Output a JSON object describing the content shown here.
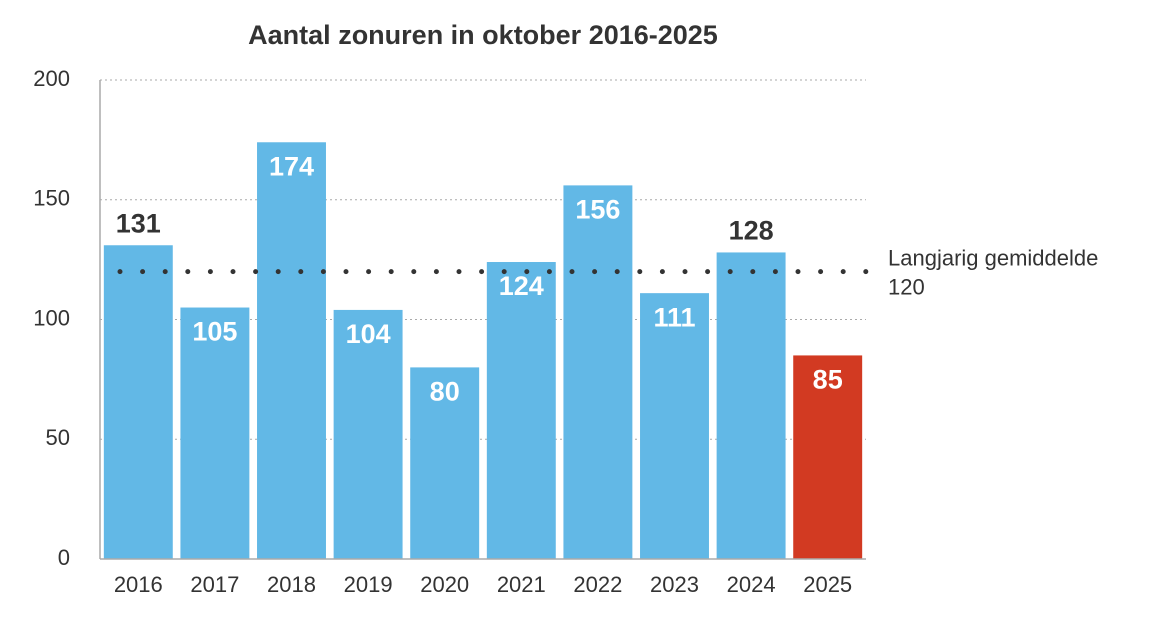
{
  "chart_data": {
    "type": "bar",
    "title": "Aantal zonuren in oktober 2016-2025",
    "categories": [
      "2016",
      "2017",
      "2018",
      "2019",
      "2020",
      "2021",
      "2022",
      "2023",
      "2024",
      "2025"
    ],
    "values": [
      131,
      105,
      174,
      104,
      80,
      124,
      156,
      111,
      128,
      85
    ],
    "colors": [
      "#62b8e6",
      "#62b8e6",
      "#62b8e6",
      "#62b8e6",
      "#62b8e6",
      "#62b8e6",
      "#62b8e6",
      "#62b8e6",
      "#62b8e6",
      "#d23a22"
    ],
    "ylim": [
      0,
      200
    ],
    "yticks": [
      0,
      50,
      100,
      150,
      200
    ],
    "grid": true,
    "reference_line": {
      "label": "Langjarig gemiddelde",
      "value": 120,
      "color": "#333333"
    }
  }
}
